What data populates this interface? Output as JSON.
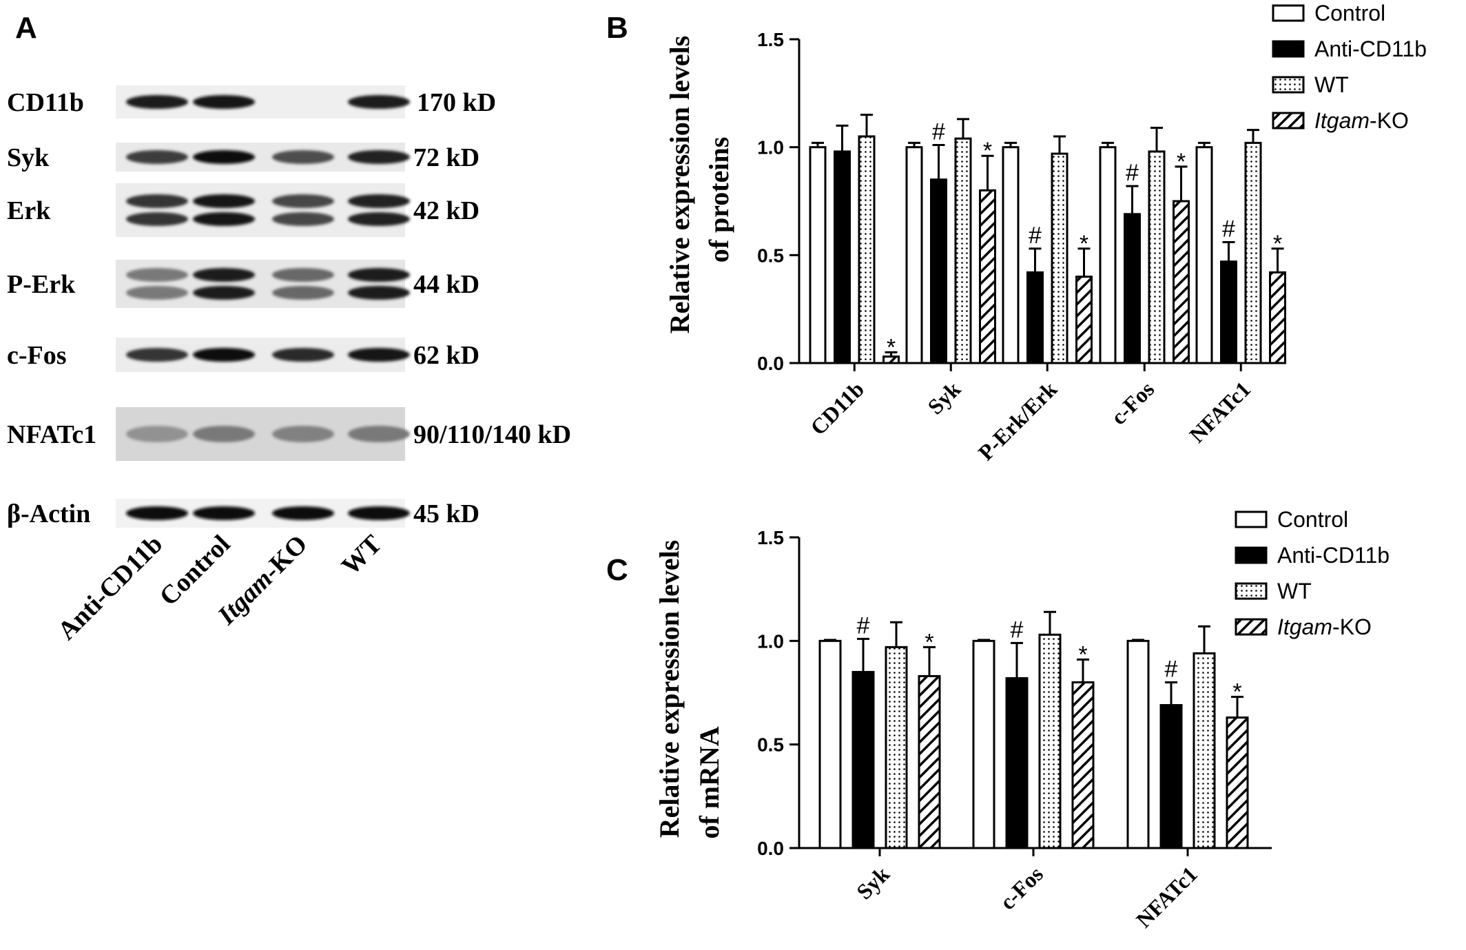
{
  "panels": {
    "a": "A",
    "b": "B",
    "c": "C"
  },
  "blot": {
    "rows": [
      {
        "name": "CD11b",
        "size": "170 kD"
      },
      {
        "name": "Syk",
        "size": "72 kD"
      },
      {
        "name": "Erk",
        "size": "42 kD"
      },
      {
        "name": "P-Erk",
        "size": "44 kD"
      },
      {
        "name": "c-Fos",
        "size": "62 kD"
      },
      {
        "name": "NFATc1",
        "size": "90/110/140 kD"
      },
      {
        "name": "β-Actin",
        "size": "45 kD"
      }
    ],
    "lanes": [
      "Anti-CD11b",
      "Control",
      "Itgam-KO",
      "WT"
    ],
    "intensity": [
      [
        0.9,
        0.95,
        0.0,
        0.9
      ],
      [
        0.7,
        1.0,
        0.6,
        0.85
      ],
      [
        0.75,
        0.95,
        0.65,
        0.85
      ],
      [
        0.35,
        0.9,
        0.45,
        0.9
      ],
      [
        0.75,
        1.0,
        0.8,
        0.95
      ],
      [
        0.2,
        0.35,
        0.3,
        0.35
      ],
      [
        1.0,
        1.0,
        1.0,
        1.0
      ]
    ]
  },
  "legend": {
    "items": [
      {
        "label": "Control",
        "pattern": "white"
      },
      {
        "label": "Anti-CD11b",
        "pattern": "black"
      },
      {
        "label": "WT",
        "pattern": "dots"
      },
      {
        "label_italic": "Itgam",
        "label_rest": "-KO",
        "pattern": "hatch"
      }
    ]
  },
  "chart_data": [
    {
      "type": "bar",
      "panel": "B",
      "ylabel_line1": "Relative expression  levels",
      "ylabel_line2": "of proteins",
      "xlabel": "",
      "ylim": [
        0,
        1.5
      ],
      "yticks": [
        "0.0",
        "0.5",
        "1.0",
        "1.5"
      ],
      "categories": [
        "CD11b",
        "Syk",
        "P-Erk/Erk",
        "c-Fos",
        "NFATc1"
      ],
      "series": [
        {
          "name": "Control",
          "values": [
            1.0,
            1.0,
            1.0,
            1.0,
            1.0
          ],
          "errors": [
            0.02,
            0.02,
            0.02,
            0.02,
            0.02
          ],
          "marks": [
            "",
            "",
            "",
            "",
            ""
          ]
        },
        {
          "name": "Anti-CD11b",
          "values": [
            0.98,
            0.85,
            0.42,
            0.69,
            0.47
          ],
          "errors": [
            0.12,
            0.16,
            0.11,
            0.13,
            0.09
          ],
          "marks": [
            "",
            "#",
            "#",
            "#",
            "#"
          ]
        },
        {
          "name": "WT",
          "values": [
            1.05,
            1.04,
            0.97,
            0.98,
            1.02
          ],
          "errors": [
            0.1,
            0.09,
            0.08,
            0.11,
            0.06
          ],
          "marks": [
            "",
            "",
            "",
            "",
            ""
          ]
        },
        {
          "name": "Itgam-KO",
          "values": [
            0.03,
            0.8,
            0.4,
            0.75,
            0.42
          ],
          "errors": [
            0.02,
            0.16,
            0.13,
            0.16,
            0.11
          ],
          "marks": [
            "*",
            "*",
            "*",
            "*",
            "*"
          ]
        }
      ]
    },
    {
      "type": "bar",
      "panel": "C",
      "ylabel_line1": "Relative expression levels",
      "ylabel_line2": "of mRNA",
      "xlabel": "",
      "ylim": [
        0,
        1.5
      ],
      "yticks": [
        "0.0",
        "0.5",
        "1.0",
        "1.5"
      ],
      "categories": [
        "Syk",
        "c-Fos",
        "NFATc1"
      ],
      "series": [
        {
          "name": "Control",
          "values": [
            1.0,
            1.0,
            1.0
          ],
          "errors": [
            0.005,
            0.005,
            0.005
          ],
          "marks": [
            "",
            "",
            ""
          ]
        },
        {
          "name": "Anti-CD11b",
          "values": [
            0.85,
            0.82,
            0.69
          ],
          "errors": [
            0.16,
            0.17,
            0.11
          ],
          "marks": [
            "#",
            "#",
            "#"
          ]
        },
        {
          "name": "WT",
          "values": [
            0.97,
            1.03,
            0.94
          ],
          "errors": [
            0.12,
            0.11,
            0.13
          ],
          "marks": [
            "",
            "",
            ""
          ]
        },
        {
          "name": "Itgam-KO",
          "values": [
            0.83,
            0.8,
            0.63
          ],
          "errors": [
            0.14,
            0.11,
            0.1
          ],
          "marks": [
            "*",
            "*",
            "*"
          ]
        }
      ]
    }
  ]
}
